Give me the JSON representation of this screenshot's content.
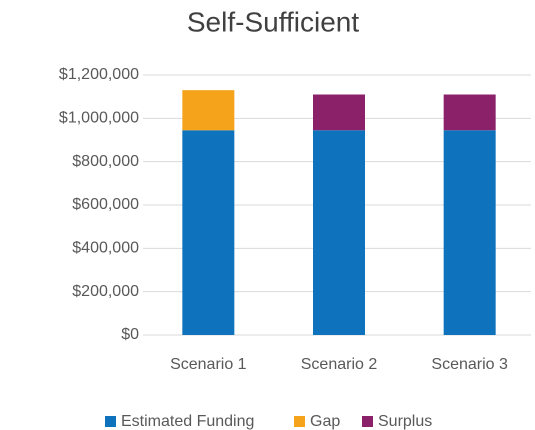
{
  "chart_data": {
    "type": "stacked_bar",
    "title": "Self-Sufficient",
    "categories": [
      "Scenario 1",
      "Scenario 2",
      "Scenario 3"
    ],
    "series": [
      {
        "name": "Estimated Funding",
        "color": "#0f72bd",
        "values": [
          945000,
          945000,
          945000
        ]
      },
      {
        "name": "Gap",
        "color": "#f5a31a",
        "values": [
          185000,
          null,
          null
        ]
      },
      {
        "name": "Surplus",
        "color": "#8b2269",
        "values": [
          null,
          165000,
          165000
        ]
      }
    ],
    "ylim": [
      0,
      1200000
    ],
    "yticks": [
      {
        "value": 0,
        "label": "$0"
      },
      {
        "value": 200000,
        "label": "$200,000"
      },
      {
        "value": 400000,
        "label": "$400,000"
      },
      {
        "value": 600000,
        "label": "$600,000"
      },
      {
        "value": 800000,
        "label": "$800,000"
      },
      {
        "value": 1000000,
        "label": "$1,000,000"
      },
      {
        "value": 1200000,
        "label": "$1,200,000"
      }
    ],
    "grid": true,
    "legend": "bottom"
  }
}
